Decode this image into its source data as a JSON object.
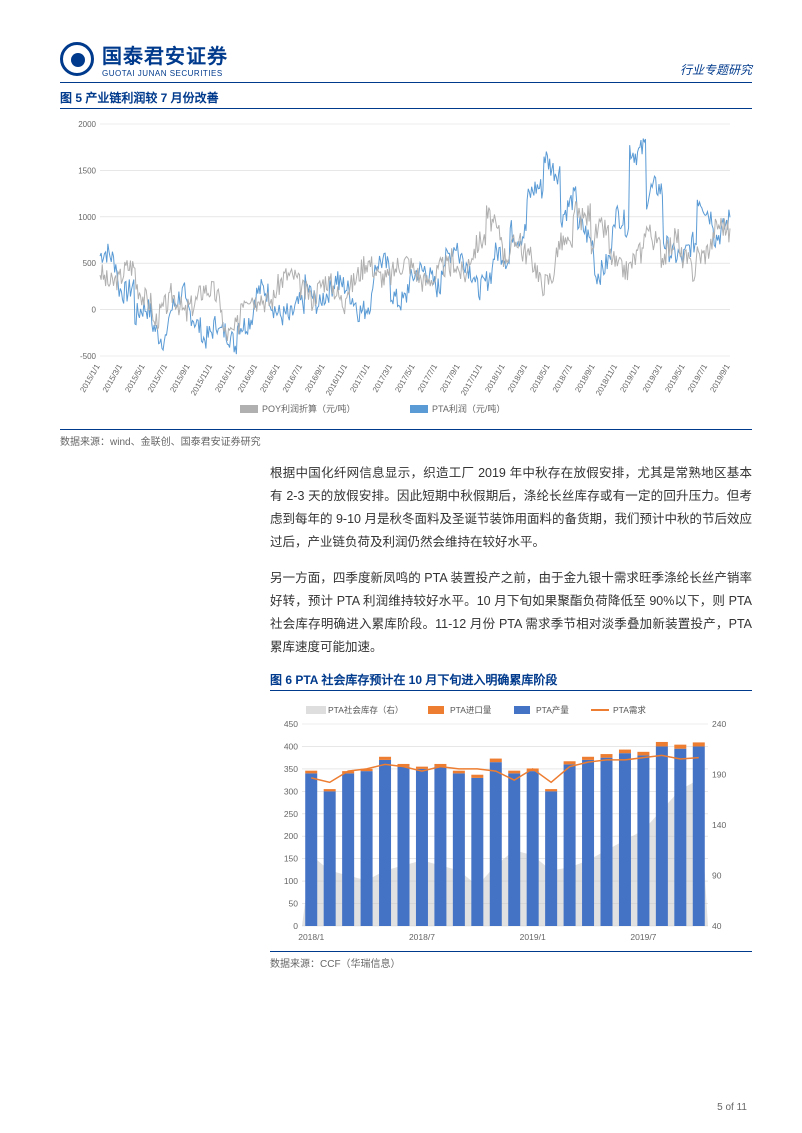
{
  "header": {
    "logo_cn": "国泰君安证券",
    "logo_en": "GUOTAI JUNAN SECURITIES",
    "right": "行业专题研究"
  },
  "fig5": {
    "title": "图 5 产业链利润较 7 月份改善",
    "source": "数据来源：wind、金联创、国泰君安证券研究",
    "ylim": [
      -500,
      2000
    ],
    "yticks": [
      -500,
      0,
      500,
      1000,
      1500,
      2000
    ],
    "x_labels": [
      "2015/1/1",
      "2015/3/1",
      "2015/5/1",
      "2015/7/1",
      "2015/9/1",
      "2015/11/1",
      "2016/1/1",
      "2016/3/1",
      "2016/5/1",
      "2016/7/1",
      "2016/9/1",
      "2016/11/1",
      "2017/1/1",
      "2017/3/1",
      "2017/5/1",
      "2017/7/1",
      "2017/9/1",
      "2017/11/1",
      "2018/1/1",
      "2018/3/1",
      "2018/5/1",
      "2018/7/1",
      "2018/9/1",
      "2018/11/1",
      "2019/1/1",
      "2019/3/1",
      "2019/5/1",
      "2019/7/1",
      "2019/9/1"
    ],
    "legend": {
      "series1": {
        "label": "POY利润折算（元/吨）",
        "color": "#b0b0b0"
      },
      "series2": {
        "label": "PTA利润（元/吨）",
        "color": "#5b9bd5"
      }
    },
    "grid_color": "#d9d9d9",
    "bg": "#ffffff",
    "axis_fontsize": 8,
    "legend_fontsize": 9
  },
  "para1": "根据中国化纤网信息显示，织造工厂 2019 年中秋存在放假安排，尤其是常熟地区基本有 2-3 天的放假安排。因此短期中秋假期后，涤纶长丝库存或有一定的回升压力。但考虑到每年的 9-10 月是秋冬面料及圣诞节装饰用面料的备货期，我们预计中秋的节后效应过后，产业链负荷及利润仍然会维持在较好水平。",
  "para2": "另一方面，四季度新凤鸣的 PTA 装置投产之前，由于金九银十需求旺季涤纶长丝产销率好转，预计 PTA 利润维持较好水平。10 月下旬如果聚酯负荷降低至 90%以下，则 PTA 社会库存明确进入累库阶段。11-12 月份 PTA 需求季节相对淡季叠加新装置投产，PTA 累库速度可能加速。",
  "fig6": {
    "title": "图 6 PTA 社会库存预计在 10 月下旬进入明确累库阶段",
    "source": "数据来源：CCF（华瑞信息）",
    "legend": {
      "inventory": {
        "label": "PTA社会库存（右）",
        "color": "#c8c8c8"
      },
      "import": {
        "label": "PTA进口量",
        "color": "#ed7d31"
      },
      "production": {
        "label": "PTA产量",
        "color": "#4472c4"
      },
      "demand": {
        "label": "PTA需求",
        "color": "#ed7d31"
      }
    },
    "x_labels": [
      "2018/1",
      "2018/7",
      "2019/1",
      "2019/7"
    ],
    "left_ylim": [
      0,
      450
    ],
    "left_yticks": [
      0,
      50,
      100,
      150,
      200,
      250,
      300,
      350,
      400,
      450
    ],
    "right_ylim": [
      40,
      240
    ],
    "right_yticks": [
      40,
      90,
      140,
      190,
      240
    ],
    "categories": [
      "2018/1",
      "",
      "",
      "",
      "",
      "",
      "2018/7",
      "",
      "",
      "",
      "",
      "",
      "2019/1",
      "",
      "",
      "",
      "",
      "",
      "2019/7",
      "",
      "",
      ""
    ],
    "production": [
      340,
      300,
      340,
      345,
      370,
      355,
      350,
      355,
      340,
      330,
      365,
      340,
      345,
      300,
      360,
      370,
      375,
      385,
      380,
      400,
      395,
      400
    ],
    "import": [
      6,
      5,
      5,
      5,
      7,
      6,
      5,
      6,
      6,
      7,
      8,
      6,
      6,
      5,
      7,
      7,
      8,
      8,
      8,
      10,
      9,
      9
    ],
    "demand": [
      330,
      320,
      345,
      350,
      360,
      355,
      345,
      355,
      350,
      350,
      345,
      325,
      350,
      320,
      355,
      365,
      370,
      370,
      375,
      380,
      372,
      375
    ],
    "inventory": [
      110,
      95,
      90,
      85,
      95,
      100,
      105,
      100,
      95,
      80,
      100,
      115,
      110,
      95,
      98,
      105,
      115,
      125,
      135,
      155,
      175,
      185
    ],
    "grid_color": "#d9d9d9",
    "axis_fontsize": 8.5
  },
  "page": "5 of 11"
}
